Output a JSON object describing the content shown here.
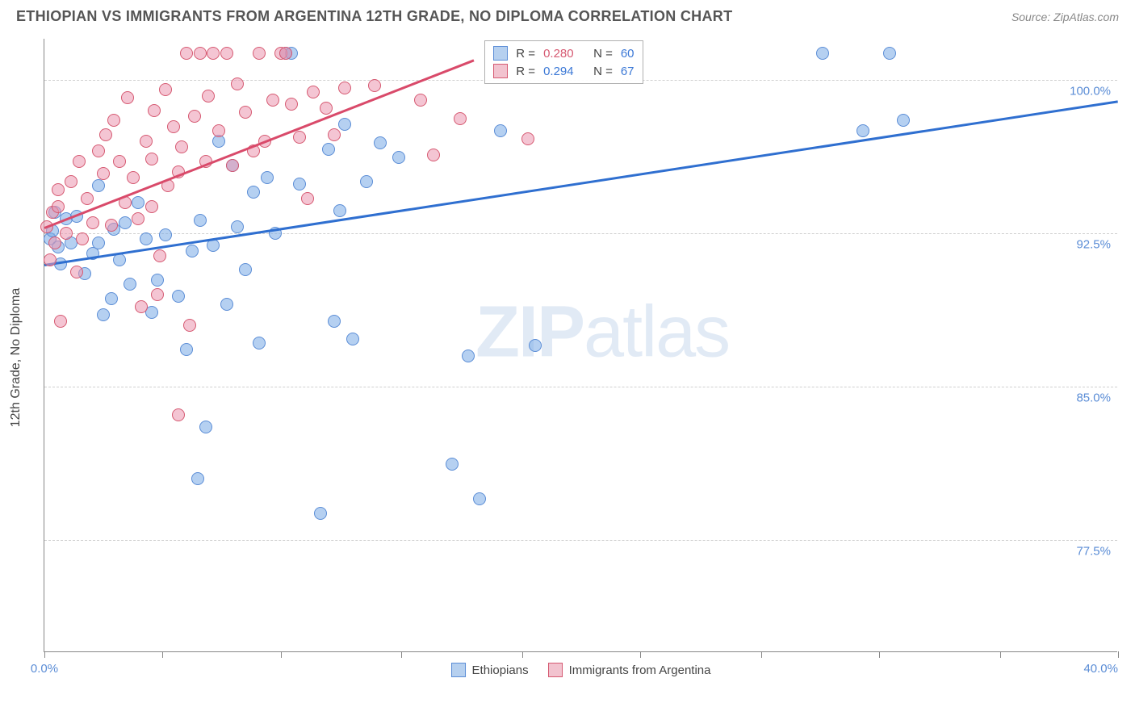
{
  "header": {
    "title": "ETHIOPIAN VS IMMIGRANTS FROM ARGENTINA 12TH GRADE, NO DIPLOMA CORRELATION CHART",
    "source": "Source: ZipAtlas.com"
  },
  "chart": {
    "type": "scatter",
    "ylabel": "12th Grade, No Diploma",
    "xlim": [
      0,
      40
    ],
    "ylim": [
      72,
      102
    ],
    "background_color": "#ffffff",
    "grid_color": "#d0d0d0",
    "axis_color": "#888888",
    "marker_radius": 8,
    "marker_opacity": 0.55,
    "xtick_positions": [
      0,
      4.4,
      8.8,
      13.3,
      17.8,
      22.2,
      26.7,
      31.1,
      35.6,
      40
    ],
    "xtick_labels": {
      "start": "0.0%",
      "end": "40.0%"
    },
    "ytick_positions": [
      77.5,
      85.0,
      92.5,
      100.0
    ],
    "ytick_labels": [
      "77.5%",
      "85.0%",
      "92.5%",
      "100.0%"
    ],
    "watermark": {
      "part1": "ZIP",
      "part2": "atlas"
    },
    "stats_box": {
      "rows": [
        {
          "swatch_fill": "#b6d0ef",
          "swatch_border": "#5b8dd6",
          "r_label": "R =",
          "r_val": "0.280",
          "n_label": "N =",
          "n_val": "60"
        },
        {
          "swatch_fill": "#f2c3cf",
          "swatch_border": "#d65a72",
          "r_label": "R =",
          "r_val": "0.294",
          "n_label": "N =",
          "n_val": "67"
        }
      ]
    },
    "legend": {
      "items": [
        {
          "swatch_fill": "#b6d0ef",
          "swatch_border": "#5b8dd6",
          "label": "Ethiopians"
        },
        {
          "swatch_fill": "#f2c3cf",
          "swatch_border": "#d65a72",
          "label": "Immigrants from Argentina"
        }
      ]
    },
    "series": [
      {
        "name": "Ethiopians",
        "color_fill": "rgba(120,170,230,0.55)",
        "color_stroke": "#5b8dd6",
        "trend": {
          "x1": 0,
          "y1": 91.0,
          "x2": 40,
          "y2": 99.0,
          "color": "#2f6fd0",
          "width": 2.5
        },
        "points": [
          [
            0.2,
            92.2
          ],
          [
            0.5,
            91.8
          ],
          [
            0.3,
            92.6
          ],
          [
            0.8,
            93.2
          ],
          [
            0.6,
            91.0
          ],
          [
            1.0,
            92.0
          ],
          [
            1.2,
            93.3
          ],
          [
            1.5,
            90.5
          ],
          [
            1.8,
            91.5
          ],
          [
            2.0,
            92.0
          ],
          [
            2.2,
            88.5
          ],
          [
            2.5,
            89.3
          ],
          [
            2.0,
            94.8
          ],
          [
            2.6,
            92.7
          ],
          [
            2.8,
            91.2
          ],
          [
            3.0,
            93.0
          ],
          [
            3.2,
            90.0
          ],
          [
            3.5,
            94.0
          ],
          [
            3.8,
            92.2
          ],
          [
            4.0,
            88.6
          ],
          [
            4.2,
            90.2
          ],
          [
            4.5,
            92.4
          ],
          [
            5.0,
            89.4
          ],
          [
            5.3,
            86.8
          ],
          [
            5.5,
            91.6
          ],
          [
            5.7,
            80.5
          ],
          [
            5.8,
            93.1
          ],
          [
            6.0,
            83.0
          ],
          [
            6.3,
            91.9
          ],
          [
            6.5,
            97.0
          ],
          [
            6.8,
            89.0
          ],
          [
            7.0,
            95.8
          ],
          [
            7.2,
            92.8
          ],
          [
            7.5,
            90.7
          ],
          [
            7.8,
            94.5
          ],
          [
            8.0,
            87.1
          ],
          [
            8.3,
            95.2
          ],
          [
            8.6,
            92.5
          ],
          [
            9.0,
            101.3
          ],
          [
            9.2,
            101.3
          ],
          [
            9.5,
            94.9
          ],
          [
            10.3,
            78.8
          ],
          [
            10.6,
            96.6
          ],
          [
            10.8,
            88.2
          ],
          [
            11.0,
            93.6
          ],
          [
            11.2,
            97.8
          ],
          [
            11.5,
            87.3
          ],
          [
            12.0,
            95.0
          ],
          [
            12.5,
            96.9
          ],
          [
            13.2,
            96.2
          ],
          [
            15.2,
            81.2
          ],
          [
            15.8,
            86.5
          ],
          [
            16.2,
            79.5
          ],
          [
            17.0,
            97.5
          ],
          [
            18.3,
            87.0
          ],
          [
            29.0,
            101.3
          ],
          [
            30.5,
            97.5
          ],
          [
            31.5,
            101.3
          ],
          [
            32.0,
            98.0
          ],
          [
            0.4,
            93.5
          ]
        ]
      },
      {
        "name": "Immigrants from Argentina",
        "color_fill": "rgba(235,150,175,0.55)",
        "color_stroke": "#d65a72",
        "trend": {
          "x1": 0,
          "y1": 92.8,
          "x2": 16,
          "y2": 101.0,
          "color": "#d94a6a",
          "width": 2.5
        },
        "points": [
          [
            0.1,
            92.8
          ],
          [
            0.2,
            91.2
          ],
          [
            0.3,
            93.5
          ],
          [
            0.4,
            92.0
          ],
          [
            0.5,
            93.8
          ],
          [
            0.5,
            94.6
          ],
          [
            0.8,
            92.5
          ],
          [
            0.6,
            88.2
          ],
          [
            1.0,
            95.0
          ],
          [
            1.2,
            90.6
          ],
          [
            1.3,
            96.0
          ],
          [
            1.6,
            94.2
          ],
          [
            1.4,
            92.2
          ],
          [
            1.8,
            93.0
          ],
          [
            2.0,
            96.5
          ],
          [
            2.2,
            95.4
          ],
          [
            2.3,
            97.3
          ],
          [
            2.5,
            92.9
          ],
          [
            2.6,
            98.0
          ],
          [
            2.8,
            96.0
          ],
          [
            3.0,
            94.0
          ],
          [
            3.1,
            99.1
          ],
          [
            3.3,
            95.2
          ],
          [
            3.5,
            93.2
          ],
          [
            3.8,
            97.0
          ],
          [
            4.0,
            96.1
          ],
          [
            4.1,
            98.5
          ],
          [
            4.3,
            91.4
          ],
          [
            4.5,
            99.5
          ],
          [
            4.6,
            94.8
          ],
          [
            4.8,
            97.7
          ],
          [
            5.0,
            95.5
          ],
          [
            5.1,
            96.7
          ],
          [
            5.3,
            101.3
          ],
          [
            5.6,
            98.2
          ],
          [
            5.8,
            101.3
          ],
          [
            6.0,
            96.0
          ],
          [
            6.1,
            99.2
          ],
          [
            6.3,
            101.3
          ],
          [
            6.5,
            97.5
          ],
          [
            6.8,
            101.3
          ],
          [
            7.0,
            95.8
          ],
          [
            5.0,
            83.6
          ],
          [
            3.6,
            88.9
          ],
          [
            4.2,
            89.5
          ],
          [
            5.4,
            88.0
          ],
          [
            7.2,
            99.8
          ],
          [
            7.5,
            98.4
          ],
          [
            7.8,
            96.5
          ],
          [
            8.0,
            101.3
          ],
          [
            8.2,
            97.0
          ],
          [
            8.5,
            99.0
          ],
          [
            8.8,
            101.3
          ],
          [
            9.0,
            101.3
          ],
          [
            9.2,
            98.8
          ],
          [
            9.8,
            94.2
          ],
          [
            9.5,
            97.2
          ],
          [
            10.0,
            99.4
          ],
          [
            10.5,
            98.6
          ],
          [
            10.8,
            97.3
          ],
          [
            11.2,
            99.6
          ],
          [
            12.3,
            99.7
          ],
          [
            14.0,
            99.0
          ],
          [
            14.5,
            96.3
          ],
          [
            15.5,
            98.1
          ],
          [
            18.0,
            97.1
          ],
          [
            4.0,
            93.8
          ]
        ]
      }
    ]
  }
}
